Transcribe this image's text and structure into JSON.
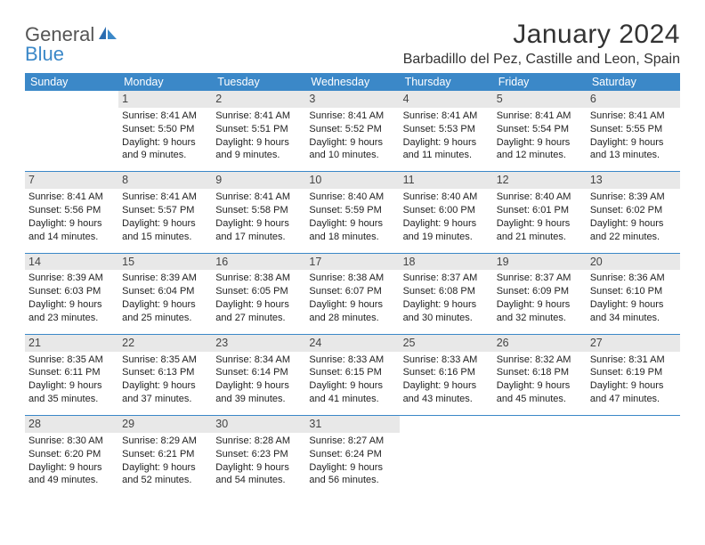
{
  "brand": {
    "general": "General",
    "blue": "Blue"
  },
  "title": "January 2024",
  "location": "Barbadillo del Pez, Castille and Leon, Spain",
  "colors": {
    "header_bg": "#3b88c8",
    "header_fg": "#ffffff",
    "daynum_bg": "#e8e8e8",
    "rule": "#3b88c8",
    "text": "#333333"
  },
  "weekdays": [
    "Sunday",
    "Monday",
    "Tuesday",
    "Wednesday",
    "Thursday",
    "Friday",
    "Saturday"
  ],
  "weeks": [
    [
      {
        "n": "",
        "sr": "",
        "ss": "",
        "dl": ""
      },
      {
        "n": "1",
        "sr": "Sunrise: 8:41 AM",
        "ss": "Sunset: 5:50 PM",
        "dl": "Daylight: 9 hours and 9 minutes."
      },
      {
        "n": "2",
        "sr": "Sunrise: 8:41 AM",
        "ss": "Sunset: 5:51 PM",
        "dl": "Daylight: 9 hours and 9 minutes."
      },
      {
        "n": "3",
        "sr": "Sunrise: 8:41 AM",
        "ss": "Sunset: 5:52 PM",
        "dl": "Daylight: 9 hours and 10 minutes."
      },
      {
        "n": "4",
        "sr": "Sunrise: 8:41 AM",
        "ss": "Sunset: 5:53 PM",
        "dl": "Daylight: 9 hours and 11 minutes."
      },
      {
        "n": "5",
        "sr": "Sunrise: 8:41 AM",
        "ss": "Sunset: 5:54 PM",
        "dl": "Daylight: 9 hours and 12 minutes."
      },
      {
        "n": "6",
        "sr": "Sunrise: 8:41 AM",
        "ss": "Sunset: 5:55 PM",
        "dl": "Daylight: 9 hours and 13 minutes."
      }
    ],
    [
      {
        "n": "7",
        "sr": "Sunrise: 8:41 AM",
        "ss": "Sunset: 5:56 PM",
        "dl": "Daylight: 9 hours and 14 minutes."
      },
      {
        "n": "8",
        "sr": "Sunrise: 8:41 AM",
        "ss": "Sunset: 5:57 PM",
        "dl": "Daylight: 9 hours and 15 minutes."
      },
      {
        "n": "9",
        "sr": "Sunrise: 8:41 AM",
        "ss": "Sunset: 5:58 PM",
        "dl": "Daylight: 9 hours and 17 minutes."
      },
      {
        "n": "10",
        "sr": "Sunrise: 8:40 AM",
        "ss": "Sunset: 5:59 PM",
        "dl": "Daylight: 9 hours and 18 minutes."
      },
      {
        "n": "11",
        "sr": "Sunrise: 8:40 AM",
        "ss": "Sunset: 6:00 PM",
        "dl": "Daylight: 9 hours and 19 minutes."
      },
      {
        "n": "12",
        "sr": "Sunrise: 8:40 AM",
        "ss": "Sunset: 6:01 PM",
        "dl": "Daylight: 9 hours and 21 minutes."
      },
      {
        "n": "13",
        "sr": "Sunrise: 8:39 AM",
        "ss": "Sunset: 6:02 PM",
        "dl": "Daylight: 9 hours and 22 minutes."
      }
    ],
    [
      {
        "n": "14",
        "sr": "Sunrise: 8:39 AM",
        "ss": "Sunset: 6:03 PM",
        "dl": "Daylight: 9 hours and 23 minutes."
      },
      {
        "n": "15",
        "sr": "Sunrise: 8:39 AM",
        "ss": "Sunset: 6:04 PM",
        "dl": "Daylight: 9 hours and 25 minutes."
      },
      {
        "n": "16",
        "sr": "Sunrise: 8:38 AM",
        "ss": "Sunset: 6:05 PM",
        "dl": "Daylight: 9 hours and 27 minutes."
      },
      {
        "n": "17",
        "sr": "Sunrise: 8:38 AM",
        "ss": "Sunset: 6:07 PM",
        "dl": "Daylight: 9 hours and 28 minutes."
      },
      {
        "n": "18",
        "sr": "Sunrise: 8:37 AM",
        "ss": "Sunset: 6:08 PM",
        "dl": "Daylight: 9 hours and 30 minutes."
      },
      {
        "n": "19",
        "sr": "Sunrise: 8:37 AM",
        "ss": "Sunset: 6:09 PM",
        "dl": "Daylight: 9 hours and 32 minutes."
      },
      {
        "n": "20",
        "sr": "Sunrise: 8:36 AM",
        "ss": "Sunset: 6:10 PM",
        "dl": "Daylight: 9 hours and 34 minutes."
      }
    ],
    [
      {
        "n": "21",
        "sr": "Sunrise: 8:35 AM",
        "ss": "Sunset: 6:11 PM",
        "dl": "Daylight: 9 hours and 35 minutes."
      },
      {
        "n": "22",
        "sr": "Sunrise: 8:35 AM",
        "ss": "Sunset: 6:13 PM",
        "dl": "Daylight: 9 hours and 37 minutes."
      },
      {
        "n": "23",
        "sr": "Sunrise: 8:34 AM",
        "ss": "Sunset: 6:14 PM",
        "dl": "Daylight: 9 hours and 39 minutes."
      },
      {
        "n": "24",
        "sr": "Sunrise: 8:33 AM",
        "ss": "Sunset: 6:15 PM",
        "dl": "Daylight: 9 hours and 41 minutes."
      },
      {
        "n": "25",
        "sr": "Sunrise: 8:33 AM",
        "ss": "Sunset: 6:16 PM",
        "dl": "Daylight: 9 hours and 43 minutes."
      },
      {
        "n": "26",
        "sr": "Sunrise: 8:32 AM",
        "ss": "Sunset: 6:18 PM",
        "dl": "Daylight: 9 hours and 45 minutes."
      },
      {
        "n": "27",
        "sr": "Sunrise: 8:31 AM",
        "ss": "Sunset: 6:19 PM",
        "dl": "Daylight: 9 hours and 47 minutes."
      }
    ],
    [
      {
        "n": "28",
        "sr": "Sunrise: 8:30 AM",
        "ss": "Sunset: 6:20 PM",
        "dl": "Daylight: 9 hours and 49 minutes."
      },
      {
        "n": "29",
        "sr": "Sunrise: 8:29 AM",
        "ss": "Sunset: 6:21 PM",
        "dl": "Daylight: 9 hours and 52 minutes."
      },
      {
        "n": "30",
        "sr": "Sunrise: 8:28 AM",
        "ss": "Sunset: 6:23 PM",
        "dl": "Daylight: 9 hours and 54 minutes."
      },
      {
        "n": "31",
        "sr": "Sunrise: 8:27 AM",
        "ss": "Sunset: 6:24 PM",
        "dl": "Daylight: 9 hours and 56 minutes."
      },
      {
        "n": "",
        "sr": "",
        "ss": "",
        "dl": ""
      },
      {
        "n": "",
        "sr": "",
        "ss": "",
        "dl": ""
      },
      {
        "n": "",
        "sr": "",
        "ss": "",
        "dl": ""
      }
    ]
  ]
}
